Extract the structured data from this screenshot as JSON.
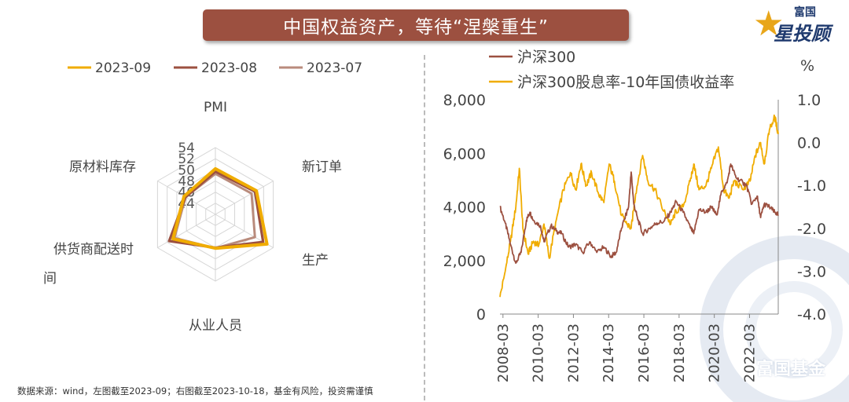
{
  "header": {
    "title": "中国权益资产，等待“涅槃重生”",
    "brand_top": "富国",
    "brand_main": "星投顾",
    "watermark": "富国基金"
  },
  "source_note": "数据来源：wind，左图截至2023-09；右图截至2023-10-18，基金有风险，投资需谨慎",
  "colors": {
    "title_bg": "#9c5040",
    "s2023_09": "#f0ac00",
    "s2023_08": "#9c5040",
    "s2023_07": "#b98b7c",
    "hs300": "#9c5040",
    "spread": "#f0ac00"
  },
  "chart_data": [
    {
      "type": "radar",
      "axes": [
        "PMI",
        "新订单",
        "生产",
        "从业人员",
        "供货商配送时间",
        "原材料库存"
      ],
      "axis_labels_display": [
        "PMI",
        "新订单",
        "生产",
        "从业人员",
        "供货商配送时",
        "间",
        "原材料库存"
      ],
      "ticks": [
        44,
        46,
        48,
        50,
        52,
        54
      ],
      "range": [
        42,
        54
      ],
      "legend_position": "top",
      "series": [
        {
          "name": "2023-09",
          "values": [
            50.2,
            50.5,
            52.7,
            48.1,
            50.8,
            48.5
          ]
        },
        {
          "name": "2023-08",
          "values": [
            49.7,
            50.2,
            51.9,
            48.0,
            51.6,
            48.2
          ]
        },
        {
          "name": "2023-07",
          "values": [
            49.3,
            49.5,
            50.2,
            48.1,
            50.5,
            48.2
          ]
        }
      ]
    },
    {
      "type": "line",
      "x_ticks": [
        "2008-03",
        "2010-03",
        "2012-03",
        "2014-03",
        "2016-03",
        "2018-03",
        "2020-03",
        "2022-03"
      ],
      "x_range": [
        2008.0,
        2023.8
      ],
      "left_axis": {
        "ticks": [
          "8,000",
          "6,000",
          "4,000",
          "2,000",
          "0"
        ],
        "range": [
          0,
          8000
        ]
      },
      "right_axis": {
        "unit": "%",
        "ticks": [
          "1.0",
          "0.0",
          "-1.0",
          "-2.0",
          "-3.0",
          "-4.0"
        ],
        "range": [
          -4.0,
          1.0
        ]
      },
      "legend_position": "top",
      "series": [
        {
          "name": "沪深300",
          "axis": "left",
          "points": [
            [
              2008.0,
              4000
            ],
            [
              2008.3,
              3400
            ],
            [
              2008.6,
              2600
            ],
            [
              2008.9,
              1900
            ],
            [
              2009.2,
              2300
            ],
            [
              2009.5,
              3500
            ],
            [
              2009.7,
              3800
            ],
            [
              2009.9,
              3500
            ],
            [
              2010.3,
              3300
            ],
            [
              2010.5,
              2700
            ],
            [
              2010.9,
              3300
            ],
            [
              2011.2,
              3100
            ],
            [
              2011.5,
              3000
            ],
            [
              2011.9,
              2500
            ],
            [
              2012.3,
              2600
            ],
            [
              2012.7,
              2300
            ],
            [
              2013.1,
              2700
            ],
            [
              2013.5,
              2300
            ],
            [
              2013.9,
              2500
            ],
            [
              2014.3,
              2150
            ],
            [
              2014.6,
              2300
            ],
            [
              2014.9,
              3200
            ],
            [
              2015.3,
              4000
            ],
            [
              2015.45,
              5300
            ],
            [
              2015.6,
              4100
            ],
            [
              2015.8,
              3600
            ],
            [
              2016.1,
              3000
            ],
            [
              2016.5,
              3200
            ],
            [
              2016.9,
              3400
            ],
            [
              2017.3,
              3450
            ],
            [
              2017.7,
              3800
            ],
            [
              2018.0,
              4200
            ],
            [
              2018.4,
              3800
            ],
            [
              2018.8,
              3250
            ],
            [
              2019.0,
              3000
            ],
            [
              2019.3,
              3900
            ],
            [
              2019.7,
              3800
            ],
            [
              2020.0,
              4000
            ],
            [
              2020.3,
              3700
            ],
            [
              2020.6,
              4600
            ],
            [
              2020.9,
              4900
            ],
            [
              2021.1,
              5600
            ],
            [
              2021.4,
              5100
            ],
            [
              2021.8,
              4900
            ],
            [
              2022.0,
              4800
            ],
            [
              2022.3,
              4100
            ],
            [
              2022.6,
              4400
            ],
            [
              2022.8,
              3600
            ],
            [
              2023.0,
              4100
            ],
            [
              2023.3,
              4000
            ],
            [
              2023.6,
              3800
            ],
            [
              2023.8,
              3700
            ]
          ]
        },
        {
          "name": "沪深300股息率-10年国债收益率",
          "axis": "right",
          "points": [
            [
              2008.0,
              -3.6
            ],
            [
              2008.3,
              -3.0
            ],
            [
              2008.6,
              -2.3
            ],
            [
              2008.9,
              -1.5
            ],
            [
              2009.1,
              -0.6
            ],
            [
              2009.3,
              -2.0
            ],
            [
              2009.6,
              -2.6
            ],
            [
              2009.9,
              -2.3
            ],
            [
              2010.2,
              -2.4
            ],
            [
              2010.5,
              -1.9
            ],
            [
              2010.8,
              -2.7
            ],
            [
              2011.2,
              -1.8
            ],
            [
              2011.6,
              -1.1
            ],
            [
              2012.0,
              -0.7
            ],
            [
              2012.3,
              -1.1
            ],
            [
              2012.6,
              -0.5
            ],
            [
              2012.9,
              -1.0
            ],
            [
              2013.2,
              -0.7
            ],
            [
              2013.6,
              -1.2
            ],
            [
              2013.9,
              -1.4
            ],
            [
              2014.2,
              -0.5
            ],
            [
              2014.5,
              -0.9
            ],
            [
              2014.9,
              -1.7
            ],
            [
              2015.2,
              -1.9
            ],
            [
              2015.45,
              -2.0
            ],
            [
              2015.7,
              -1.2
            ],
            [
              2016.1,
              -0.3
            ],
            [
              2016.4,
              -0.9
            ],
            [
              2016.8,
              -1.1
            ],
            [
              2017.3,
              -1.6
            ],
            [
              2017.7,
              -1.9
            ],
            [
              2018.0,
              -1.6
            ],
            [
              2018.4,
              -1.5
            ],
            [
              2018.8,
              -0.9
            ],
            [
              2019.0,
              -0.5
            ],
            [
              2019.3,
              -1.1
            ],
            [
              2019.7,
              -1.0
            ],
            [
              2020.0,
              -0.6
            ],
            [
              2020.4,
              -0.1
            ],
            [
              2020.7,
              -1.1
            ],
            [
              2021.0,
              -1.3
            ],
            [
              2021.3,
              -0.9
            ],
            [
              2021.8,
              -1.1
            ],
            [
              2022.2,
              -0.9
            ],
            [
              2022.5,
              -0.3
            ],
            [
              2022.8,
              0.0
            ],
            [
              2023.0,
              -0.5
            ],
            [
              2023.3,
              0.3
            ],
            [
              2023.6,
              0.6
            ],
            [
              2023.8,
              0.2
            ]
          ]
        }
      ]
    }
  ]
}
